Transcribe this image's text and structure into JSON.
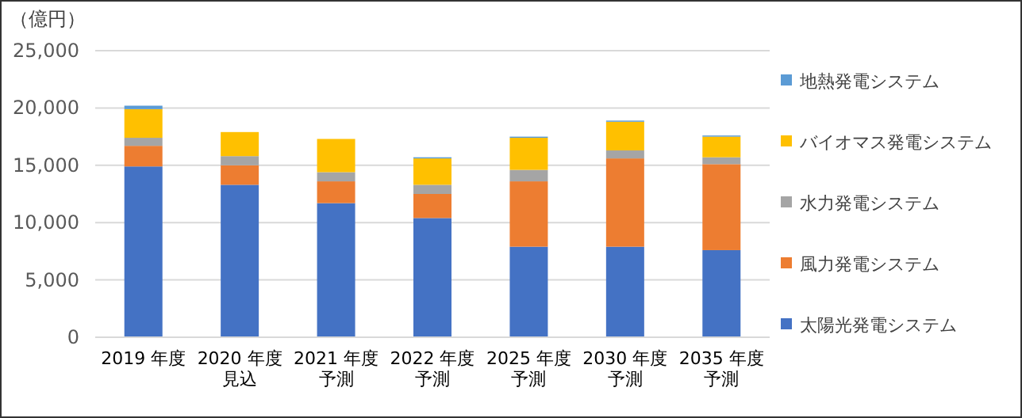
{
  "chart_data": {
    "type": "bar",
    "stacked": true,
    "ylabel": "（億円）",
    "categories": [
      "2019 年度",
      "2020 年度見込",
      "2021 年度予測",
      "2022 年度予測",
      "2025 年度予測",
      "2030 年度予測",
      "2035 年度予測"
    ],
    "series": [
      {
        "name": "太陽光発電システム",
        "color": "#4472c4",
        "values": [
          14900,
          13300,
          11700,
          10400,
          7900,
          7900,
          7600
        ]
      },
      {
        "name": "風力発電システム",
        "color": "#ed7d31",
        "values": [
          1800,
          1700,
          1900,
          2100,
          5700,
          7700,
          7500
        ]
      },
      {
        "name": "水力発電システム",
        "color": "#a5a5a5",
        "values": [
          700,
          800,
          800,
          800,
          1000,
          700,
          600
        ]
      },
      {
        "name": "バイオマス発電システム",
        "color": "#ffc000",
        "values": [
          2500,
          2100,
          2900,
          2300,
          2800,
          2500,
          1800
        ]
      },
      {
        "name": "地熱発電システム",
        "color": "#5b9bd5",
        "values": [
          300,
          0,
          0,
          100,
          100,
          100,
          100
        ]
      }
    ],
    "ylim": [
      0,
      25000
    ],
    "yticks": [
      {
        "value": 0,
        "label": "0"
      },
      {
        "value": 5000,
        "label": "5,000"
      },
      {
        "value": 10000,
        "label": "10,000"
      },
      {
        "value": 15000,
        "label": "15,000"
      },
      {
        "value": 20000,
        "label": "20,000"
      },
      {
        "value": 25000,
        "label": "25,000"
      }
    ],
    "grid": "y",
    "legend": "right"
  }
}
